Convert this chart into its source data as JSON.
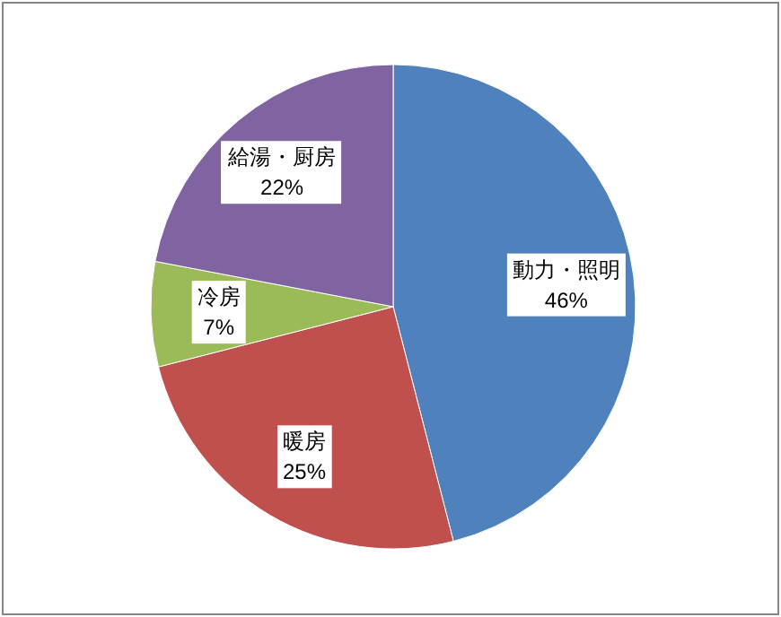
{
  "chart_data": {
    "type": "pie",
    "categories": [
      "動力・照明",
      "暖房",
      "冷房",
      "給湯・厨房"
    ],
    "values": [
      46,
      25,
      7,
      22
    ],
    "value_labels": [
      "46%",
      "25%",
      "7%",
      "22%"
    ],
    "colors": [
      "#4f81bd",
      "#c0504d",
      "#9bbb59",
      "#8064a2"
    ]
  }
}
